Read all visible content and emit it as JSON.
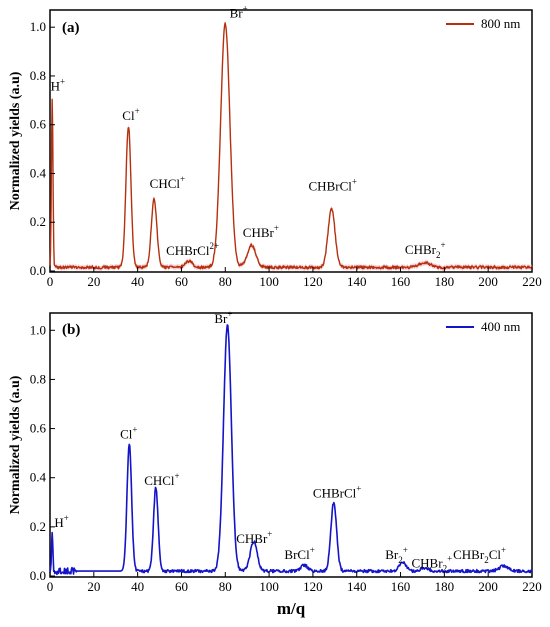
{
  "chart_data": [
    {
      "type": "line",
      "panel_label": "(a)",
      "ylabel": "Normalized yields (a.u)",
      "xlabel": "",
      "xlim": [
        0,
        220
      ],
      "ylim": [
        0,
        1.05
      ],
      "x_ticks": [
        "0",
        "20",
        "40",
        "60",
        "80",
        "100",
        "120",
        "140",
        "160",
        "180",
        "200",
        "220"
      ],
      "y_ticks": [
        "0.0",
        "0.2",
        "0.4",
        "0.6",
        "0.8",
        "1.0"
      ],
      "color": "#b5300e",
      "series": [
        {
          "name": "800 nm",
          "legend": "top-right"
        }
      ],
      "baseline": 0.015,
      "peaks": [
        {
          "center": 1.0,
          "height": 0.69,
          "width": 0.35,
          "label": "H+"
        },
        {
          "center": 35.8,
          "height": 0.58,
          "width": 1.15,
          "label": "Cl+"
        },
        {
          "center": 47.5,
          "height": 0.28,
          "width": 1.25,
          "label": "CHCl+"
        },
        {
          "center": 63.5,
          "height": 0.025,
          "width": 1.6,
          "label": "CHBrCl2+"
        },
        {
          "center": 80.0,
          "height": 1.0,
          "width": 2.1,
          "label": "Br+"
        },
        {
          "center": 92.0,
          "height": 0.09,
          "width": 2.0,
          "label": "CHBr+"
        },
        {
          "center": 128.5,
          "height": 0.24,
          "width": 1.6,
          "label": "CHBrCl+"
        },
        {
          "center": 171.0,
          "height": 0.02,
          "width": 2.5,
          "label": "CHBr2+"
        }
      ],
      "annotations": [
        {
          "base": "H",
          "sup": "+",
          "x": 0.3,
          "y": 0.74
        },
        {
          "base": "Cl",
          "sup": "+",
          "x": 33.0,
          "y": 0.62
        },
        {
          "base": "CHCl",
          "sup": "+",
          "x": 45.5,
          "y": 0.34
        },
        {
          "base": "CHBrCl",
          "sup": "2+",
          "x": 53.0,
          "y": 0.065
        },
        {
          "base": "Br",
          "sup": "+",
          "x": 82.0,
          "y": 1.04
        },
        {
          "base": "CHBr",
          "sup": "+",
          "x": 88.0,
          "y": 0.14
        },
        {
          "base": "CHBrCl",
          "sup": "+",
          "x": 118.0,
          "y": 0.33
        },
        {
          "base": "CHBr",
          "sub": "2",
          "sup": "+",
          "x": 162.0,
          "y": 0.07
        }
      ]
    },
    {
      "type": "line",
      "panel_label": "(b)",
      "ylabel": "Normalized yields (a.u)",
      "xlabel": "m/q",
      "xlim": [
        0,
        220
      ],
      "ylim": [
        0,
        1.05
      ],
      "x_ticks": [
        "0",
        "20",
        "40",
        "60",
        "80",
        "100",
        "120",
        "140",
        "160",
        "180",
        "200",
        "220"
      ],
      "y_ticks": [
        "0.0",
        "0.2",
        "0.4",
        "0.6",
        "0.8",
        "1.0"
      ],
      "color": "#1414c8",
      "series": [
        {
          "name": "400 nm",
          "legend": "top-right"
        }
      ],
      "baseline": 0.02,
      "peaks": [
        {
          "center": 1.0,
          "height": 0.16,
          "width": 0.3,
          "label": "H+"
        },
        {
          "center": 36.2,
          "height": 0.52,
          "width": 1.05,
          "label": "Cl+"
        },
        {
          "center": 48.3,
          "height": 0.34,
          "width": 1.05,
          "label": "CHCl+"
        },
        {
          "center": 81.0,
          "height": 1.0,
          "width": 1.8,
          "label": "Br+"
        },
        {
          "center": 93.0,
          "height": 0.12,
          "width": 1.6,
          "label": "CHBr+"
        },
        {
          "center": 116.0,
          "height": 0.025,
          "width": 1.5,
          "label": "BrCl+"
        },
        {
          "center": 129.5,
          "height": 0.28,
          "width": 1.3,
          "label": "CHBrCl+"
        },
        {
          "center": 161.0,
          "height": 0.035,
          "width": 1.6,
          "label": "Br2+"
        },
        {
          "center": 171.0,
          "height": 0.012,
          "width": 2.0,
          "label": "CHBr2+"
        },
        {
          "center": 207.0,
          "height": 0.02,
          "width": 2.0,
          "label": "CHBr2Cl+"
        }
      ],
      "annotations": [
        {
          "base": "H",
          "sup": "+",
          "x": 2.0,
          "y": 0.2
        },
        {
          "base": "Cl",
          "sup": "+",
          "x": 32.0,
          "y": 0.56
        },
        {
          "base": "CHCl",
          "sup": "+",
          "x": 43.0,
          "y": 0.37
        },
        {
          "base": "Br",
          "sup": "+",
          "x": 75.0,
          "y": 1.03
        },
        {
          "base": "CHBr",
          "sup": "+",
          "x": 85.0,
          "y": 0.135
        },
        {
          "base": "BrCl",
          "sup": "+",
          "x": 107.0,
          "y": 0.07
        },
        {
          "base": "CHBrCl",
          "sup": "+",
          "x": 120.0,
          "y": 0.32
        },
        {
          "base": "Br",
          "sub": "2",
          "sup": "+",
          "x": 153.0,
          "y": 0.07
        },
        {
          "base": "CHBr",
          "sub": "2",
          "sup": "+",
          "x": 165.0,
          "y": 0.035
        },
        {
          "base": "CHBr",
          "sub": "2",
          "mid": "Cl",
          "sup": "+",
          "x": 184.0,
          "y": 0.07
        }
      ]
    }
  ]
}
